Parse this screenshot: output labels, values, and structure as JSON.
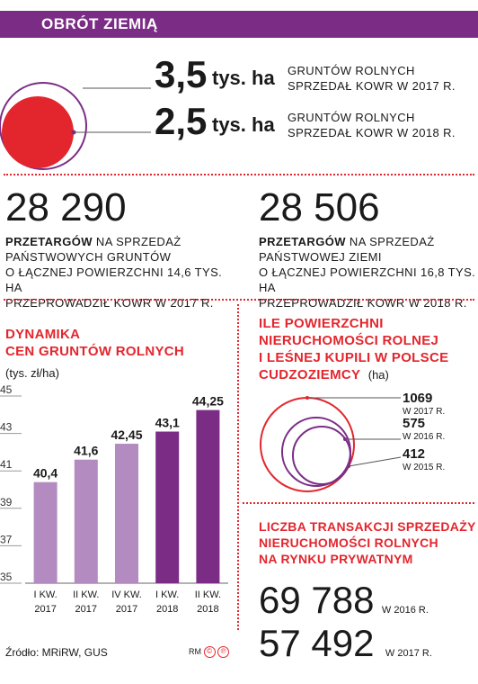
{
  "header": {
    "title": "OBRÓT ZIEMIĄ"
  },
  "land_sales": {
    "rows": [
      {
        "value": "3,5",
        "unit": "tys. ha",
        "desc1": "GRUNTÓW ROLNYCH",
        "desc2": "SPRZEDAŁ KOWR W 2017 R."
      },
      {
        "value": "2,5",
        "unit": "tys. ha",
        "desc1": "GRUNTÓW ROLNYCH",
        "desc2": "SPRZEDAŁ KOWR W 2018 R."
      }
    ]
  },
  "tenders": [
    {
      "number": "28 290",
      "bold": "PRZETARGÓW",
      "line1": " NA SPRZEDAŻ",
      "line2": "PAŃSTWOWYCH GRUNTÓW",
      "line3": "O ŁĄCZNEJ POWIERZCHNI 14,6 TYS. HA",
      "line4": "PRZEPROWADZIŁ KOWR W 2017 R."
    },
    {
      "number": "28 506",
      "bold": "PRZETARGÓW",
      "line1": " NA SPRZEDAŻ",
      "line2": "PAŃSTWOWEJ ZIEMI",
      "line3": "O ŁĄCZNEJ POWIERZCHNI 16,8 TYS. HA",
      "line4": "PRZEPROWADZIŁ KOWR W 2018 R."
    }
  ],
  "price_chart_titles": {
    "line1": "DYNAMIKA",
    "line2": "CEN GRUNTÓW ROLNYCH",
    "unit": "(tys. zł/ha)"
  },
  "foreigners": {
    "title1": "ILE POWIERZCHNI",
    "title2": "NIERUCHOMOŚCI ROLNEJ",
    "title3": "I LEŚNEJ KUPILI W POLSCE",
    "title4": "CUDZOZIEMCY",
    "unit": "(ha)",
    "items": [
      {
        "value": "1069",
        "year": "W 2017 R.",
        "amount": 1069
      },
      {
        "value": "575",
        "year": "W 2016 R.",
        "amount": 575
      },
      {
        "value": "412",
        "year": "W 2015 R.",
        "amount": 412
      }
    ]
  },
  "transactions": {
    "title1": "LICZBA TRANSAKCJI SPRZEDAŻY",
    "title2": "NIERUCHOMOŚCI ROLNYCH",
    "title3": "NA RYNKU PRYWATNYM",
    "rows": [
      {
        "number": "69 788",
        "year": "W 2016 R."
      },
      {
        "number": "57 492",
        "year": "W 2017 R."
      }
    ]
  },
  "footer": {
    "source": "Źródło: MRiRW, GUS",
    "credit": "RM"
  },
  "colors": {
    "purple": "#7b2d86",
    "light_purple": "#b48bc0",
    "red": "#e3262d"
  },
  "chart_data": {
    "type": "bar",
    "title": "DYNAMIKA CEN GRUNTÓW ROLNYCH",
    "ylabel": "(tys. zł/ha)",
    "categories": [
      "I KW. 2017",
      "II KW. 2017",
      "IV KW. 2017",
      "I KW. 2018",
      "II KW. 2018"
    ],
    "cat_line1": [
      "I KW.",
      "II KW.",
      "IV KW.",
      "I KW.",
      "II KW."
    ],
    "cat_line2": [
      "2017",
      "2017",
      "2017",
      "2018",
      "2018"
    ],
    "values": [
      40.4,
      41.6,
      42.45,
      43.1,
      44.25
    ],
    "value_labels": [
      "40,4",
      "41,6",
      "42,45",
      "43,1",
      "44,25"
    ],
    "bar_colors": [
      "#b48bc0",
      "#b48bc0",
      "#b48bc0",
      "#7b2d86",
      "#7b2d86"
    ],
    "ylim": [
      35,
      45
    ],
    "yticks": [
      35,
      37,
      39,
      41,
      43,
      45
    ],
    "grid": false
  }
}
